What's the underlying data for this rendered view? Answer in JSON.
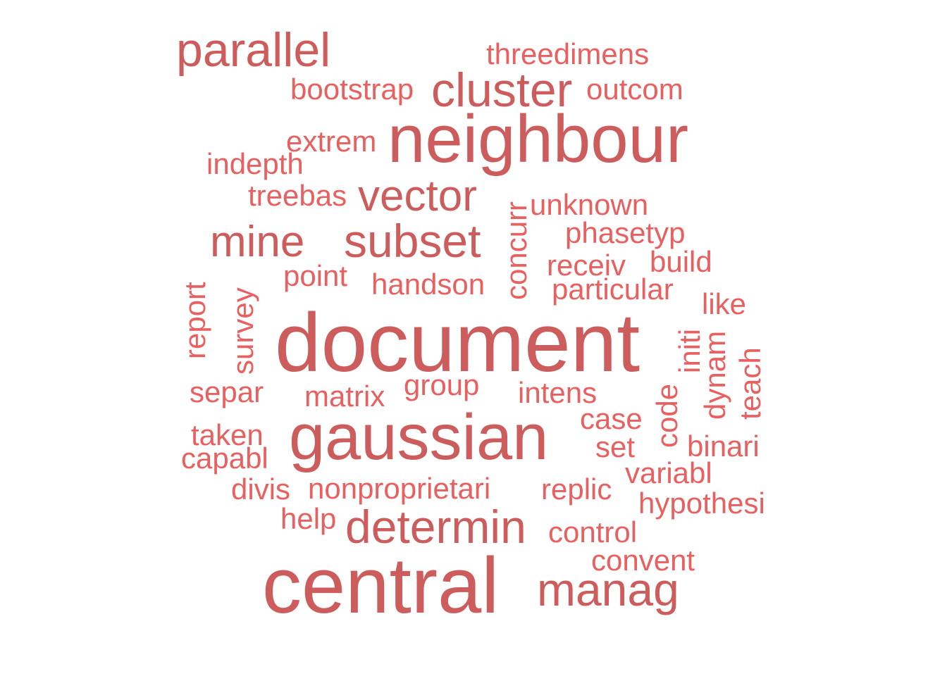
{
  "words": [
    "parallel",
    "threedimens",
    "bootstrap",
    "cluster",
    "outcom",
    "neighbour",
    "extrem",
    "indepth",
    "treebas",
    "vector",
    "concurr",
    "unknown",
    "phasetyp",
    "mine",
    "subset",
    "point",
    "handson",
    "receiv",
    "build",
    "particular",
    "report",
    "survey",
    "like",
    "document",
    "initi",
    "dynam",
    "teach",
    "separ",
    "matrix",
    "group",
    "intens",
    "case",
    "code",
    "gaussian",
    "taken",
    "set",
    "binari",
    "capabl",
    "variabl",
    "divis",
    "nonproprietari",
    "replic",
    "hypothesi",
    "help",
    "determin",
    "control",
    "convent",
    "central",
    "manag"
  ],
  "colors": {
    "primary": "#cd5c5c",
    "secondary": "#e86060"
  }
}
